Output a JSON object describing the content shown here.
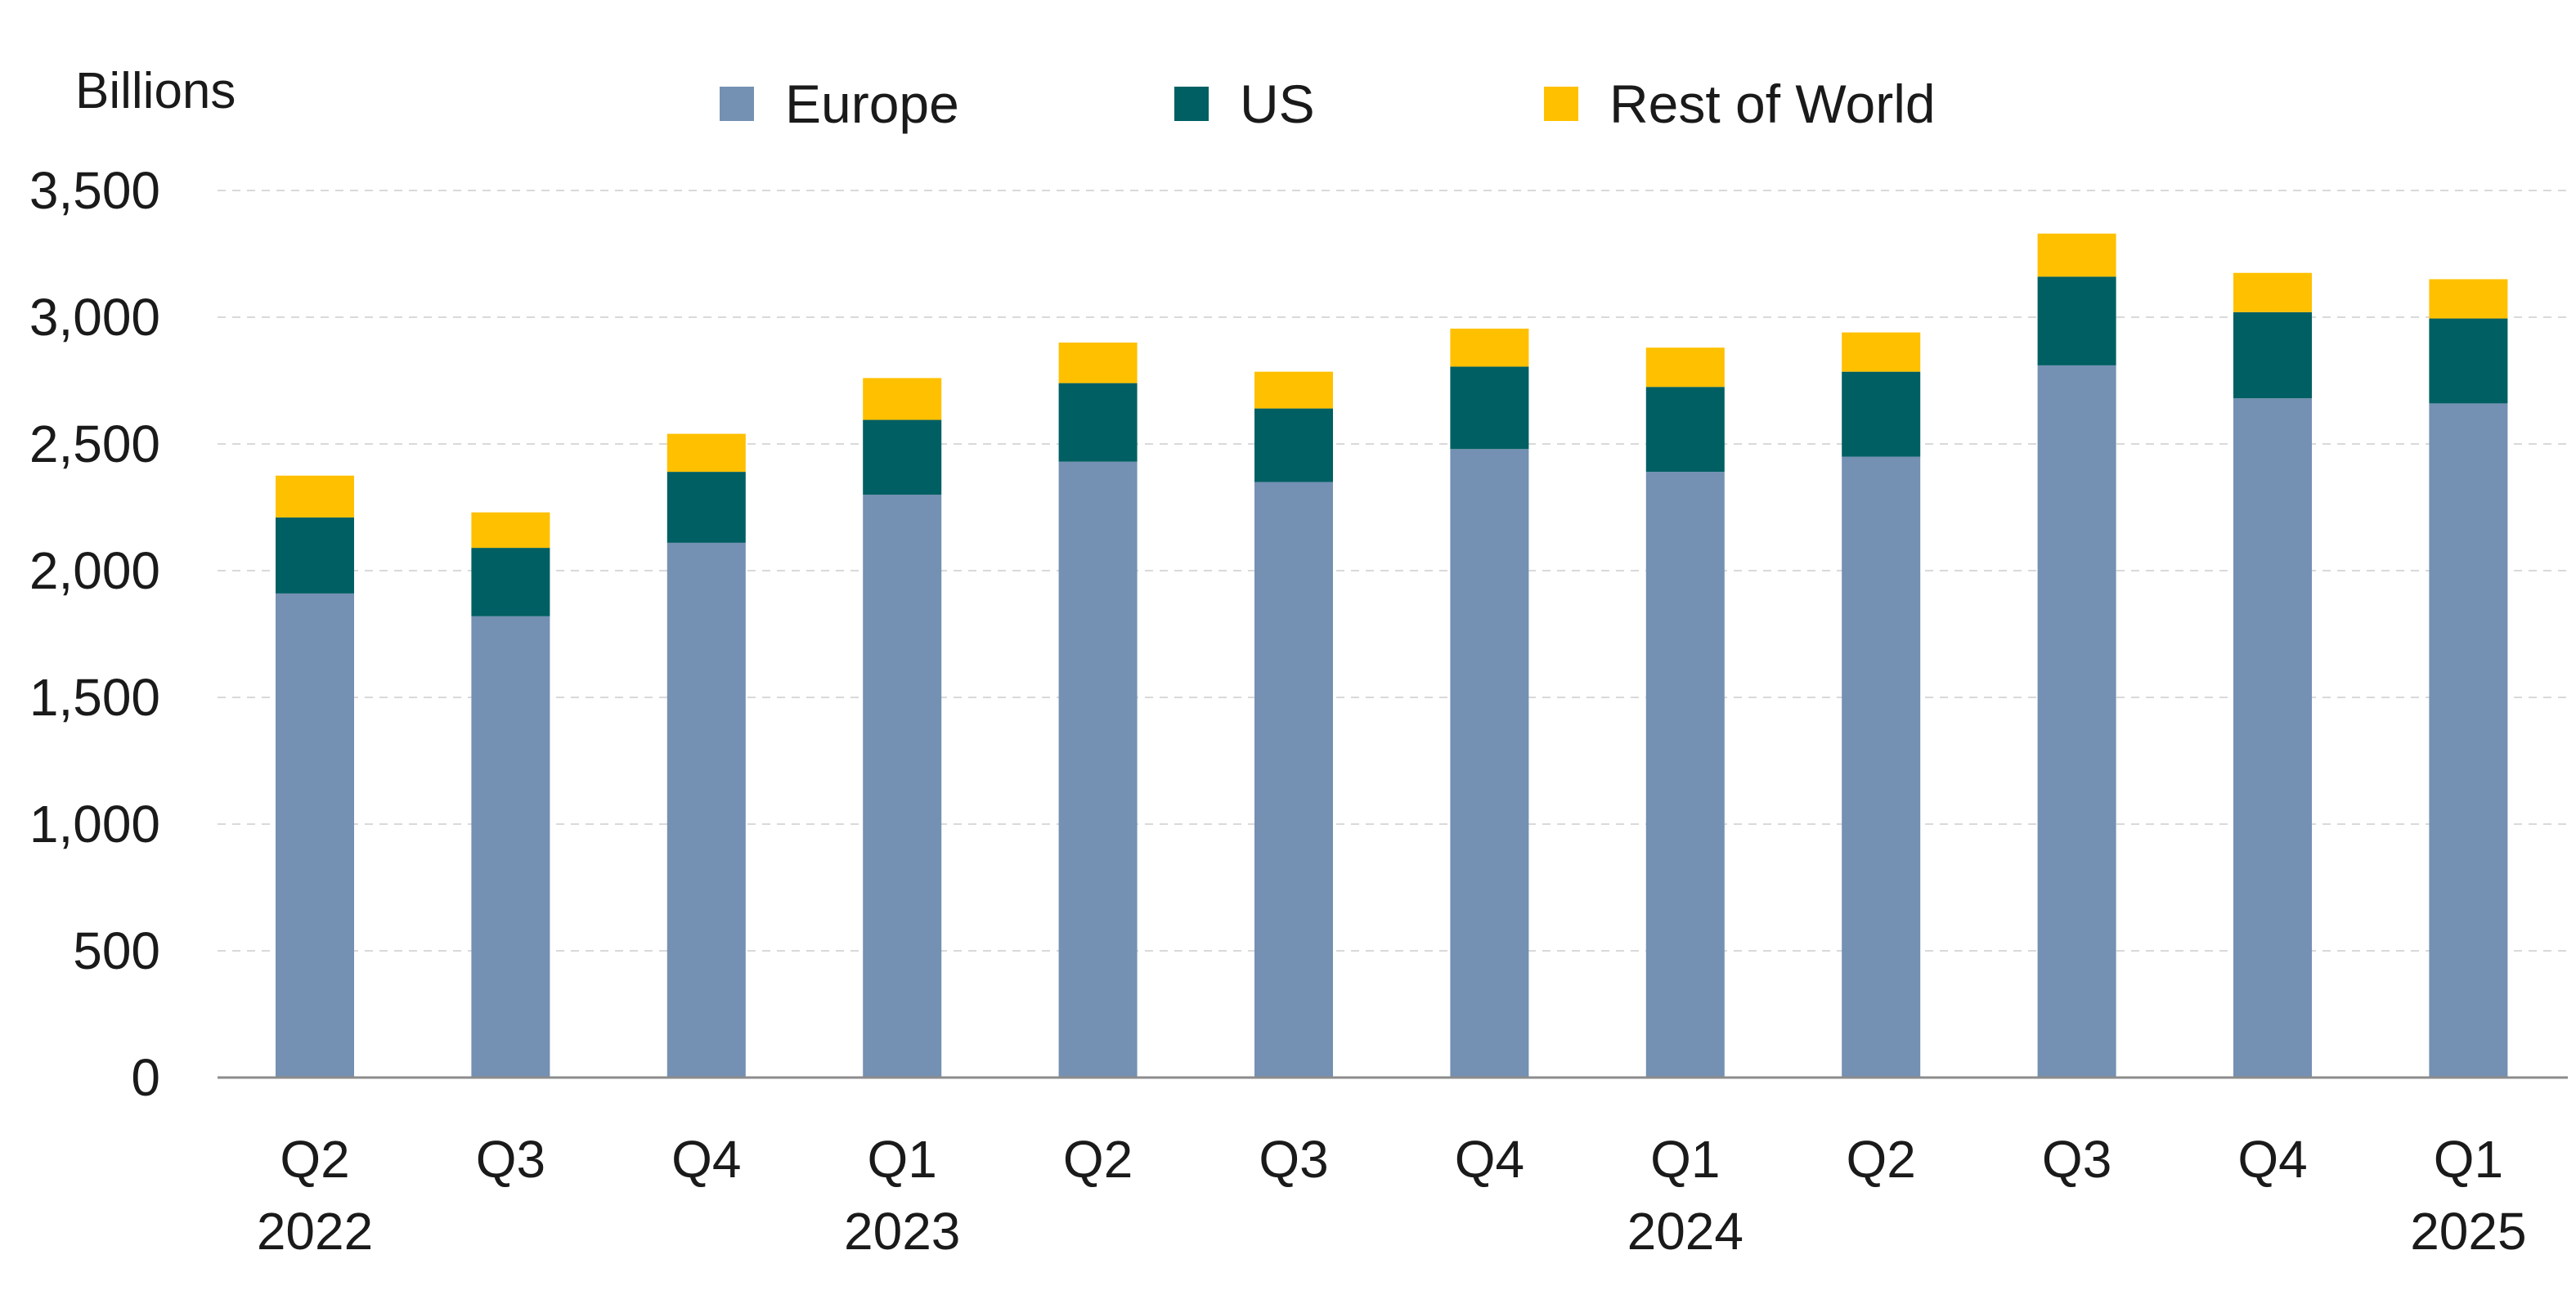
{
  "chart_data": {
    "type": "bar",
    "stacked": true,
    "unit_label": "Billions",
    "categories": [
      {
        "quarter": "Q2",
        "year": "2022"
      },
      {
        "quarter": "Q3",
        "year": ""
      },
      {
        "quarter": "Q4",
        "year": ""
      },
      {
        "quarter": "Q1",
        "year": "2023"
      },
      {
        "quarter": "Q2",
        "year": ""
      },
      {
        "quarter": "Q3",
        "year": ""
      },
      {
        "quarter": "Q4",
        "year": ""
      },
      {
        "quarter": "Q1",
        "year": "2024"
      },
      {
        "quarter": "Q2",
        "year": ""
      },
      {
        "quarter": "Q3",
        "year": ""
      },
      {
        "quarter": "Q4",
        "year": ""
      },
      {
        "quarter": "Q1",
        "year": "2025"
      }
    ],
    "series": [
      {
        "name": "Europe",
        "color": "#7490b2",
        "values": [
          1910,
          1820,
          2110,
          2300,
          2430,
          2350,
          2480,
          2390,
          2450,
          2810,
          2680,
          2660
        ]
      },
      {
        "name": "US",
        "color": "#005f62",
        "values": [
          300,
          270,
          280,
          295,
          310,
          290,
          325,
          335,
          335,
          350,
          340,
          335
        ]
      },
      {
        "name": "Rest of World",
        "color": "#ffc000",
        "values": [
          165,
          140,
          150,
          165,
          160,
          145,
          150,
          155,
          155,
          170,
          155,
          155
        ]
      }
    ],
    "ylim": [
      0,
      3500
    ],
    "yticks": [
      0,
      500,
      1000,
      1500,
      2000,
      2500,
      3000,
      3500
    ],
    "ytick_labels": [
      "0",
      "500",
      "1,000",
      "1,500",
      "2,000",
      "2,500",
      "3,000",
      "3,500"
    ],
    "grid": true,
    "legend_position": "top-center",
    "title": "",
    "xlabel": "",
    "ylabel": ""
  }
}
